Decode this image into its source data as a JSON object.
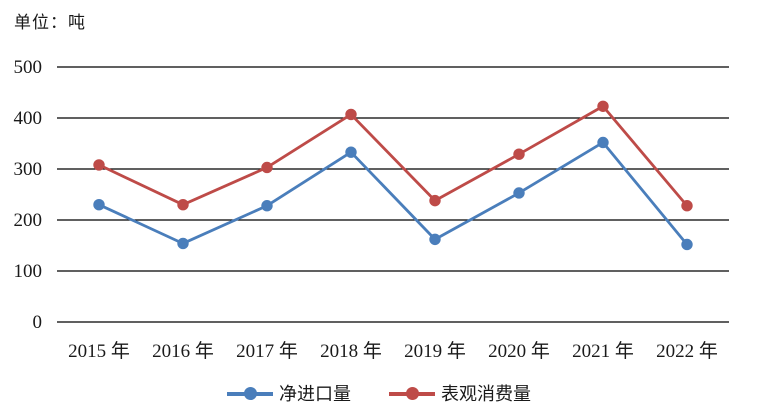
{
  "chart": {
    "unit_label": "单位：吨"
  },
  "chart_data": {
    "type": "line",
    "title": "",
    "unit_label": "单位：吨",
    "categories": [
      "2015 年",
      "2016 年",
      "2017 年",
      "2018 年",
      "2019 年",
      "2020 年",
      "2021 年",
      "2022 年"
    ],
    "series": [
      {
        "name": "净进口量",
        "color": "#4A7EBB",
        "values": [
          230,
          154,
          228,
          333,
          162,
          253,
          352,
          152
        ]
      },
      {
        "name": "表观消费量",
        "color": "#BE4B48",
        "values": [
          308,
          230,
          303,
          407,
          238,
          329,
          423,
          228
        ]
      }
    ],
    "ylim": [
      0,
      500
    ],
    "y_ticks": [
      0,
      100,
      200,
      300,
      400,
      500
    ],
    "grid": true,
    "gridline_color": "#000000",
    "text_color": "#1a1a1a",
    "legend_position": "bottom"
  }
}
